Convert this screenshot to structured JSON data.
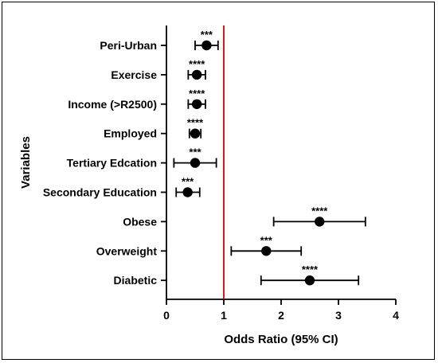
{
  "chart_data": {
    "type": "forest",
    "xlabel": "Odds Ratio (95% CI)",
    "ylabel": "Variables",
    "xlim": [
      0,
      4
    ],
    "xticks": [
      "0",
      "1",
      "2",
      "3",
      "4"
    ],
    "reference_line": {
      "x": 1,
      "color": "#d40000"
    },
    "marker_color": "#000000",
    "points": [
      {
        "label": "Peri-Urban",
        "or": 0.7,
        "ci": [
          0.5,
          0.9
        ],
        "sig": "***"
      },
      {
        "label": "Exercise",
        "or": 0.53,
        "ci": [
          0.38,
          0.68
        ],
        "sig": "****"
      },
      {
        "label": "Income (>R2500)",
        "or": 0.53,
        "ci": [
          0.38,
          0.68
        ],
        "sig": "****"
      },
      {
        "label": "Employed",
        "or": 0.5,
        "ci": [
          0.4,
          0.6
        ],
        "sig": "****"
      },
      {
        "label": "Tertiary Edcation",
        "or": 0.5,
        "ci": [
          0.13,
          0.87
        ],
        "sig": "***"
      },
      {
        "label": "Secondary Education",
        "or": 0.37,
        "ci": [
          0.17,
          0.58
        ],
        "sig": "***"
      },
      {
        "label": "Obese",
        "or": 2.67,
        "ci": [
          1.87,
          3.47
        ],
        "sig": "****"
      },
      {
        "label": "Overweight",
        "or": 1.74,
        "ci": [
          1.13,
          2.35
        ],
        "sig": "***"
      },
      {
        "label": "Diabetic",
        "or": 2.5,
        "ci": [
          1.65,
          3.35
        ],
        "sig": "****"
      }
    ]
  }
}
